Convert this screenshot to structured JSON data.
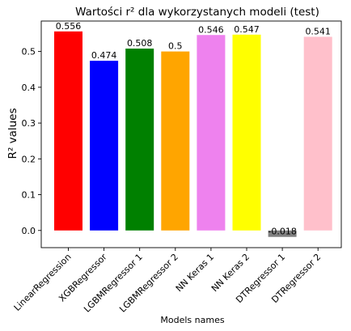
{
  "chart_data": {
    "type": "bar",
    "title": "Wartości r² dla wykorzystanych modeli (test)",
    "xlabel": "Models names",
    "ylabel": "R² values",
    "categories": [
      "LinearRegression",
      "XGBRegressor",
      "LGBMRegressor 1",
      "LGBMRegressor 2",
      "NN Keras 1",
      "NN Keras 2",
      "DTRegressor 1",
      "DTRegressor 2"
    ],
    "values": [
      0.556,
      0.474,
      0.508,
      0.5,
      0.546,
      0.547,
      -0.018,
      0.541
    ],
    "value_labels": [
      "0.556",
      "0.474",
      "0.508",
      "0.5",
      "0.546",
      "0.547",
      "-0.018",
      "0.541"
    ],
    "colors": [
      "#ff0000",
      "#0000ff",
      "#008000",
      "#ffa500",
      "#ee82ee",
      "#ffff00",
      "#808080",
      "#ffc0cb"
    ],
    "yticks": [
      "0.0",
      "0.1",
      "0.2",
      "0.3",
      "0.4",
      "0.5"
    ],
    "ylim": [
      -0.048,
      0.585
    ],
    "grid": false,
    "legend": "none"
  }
}
